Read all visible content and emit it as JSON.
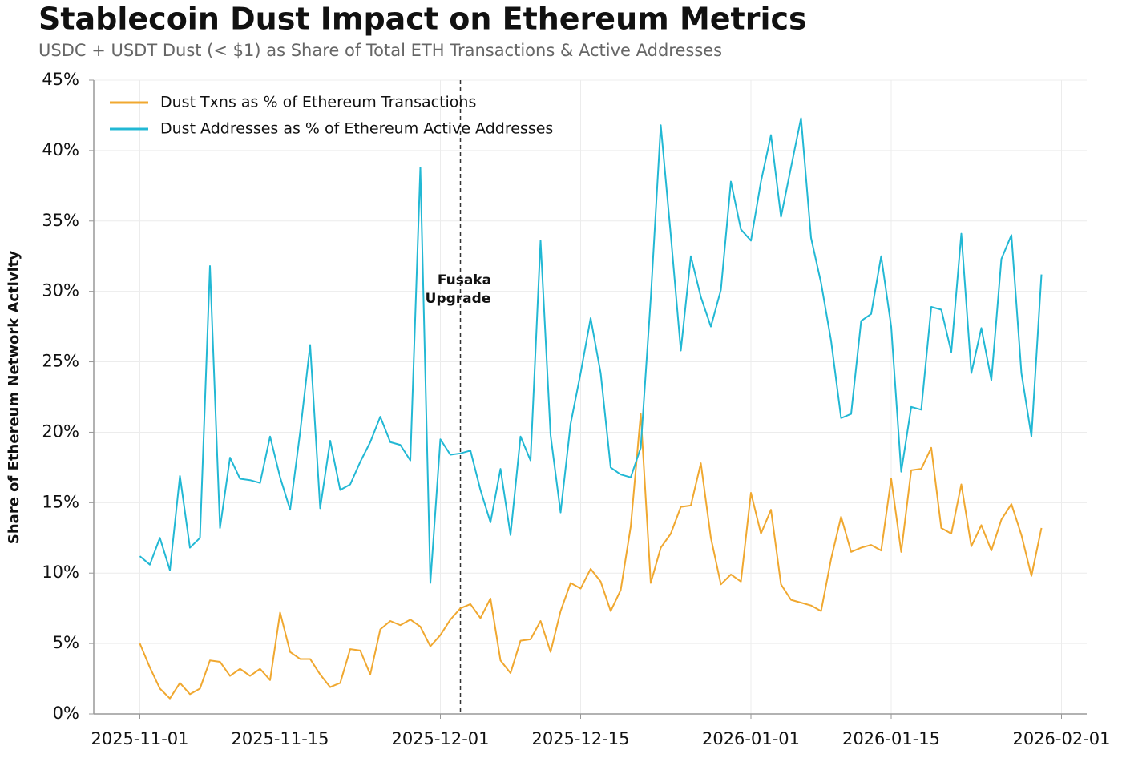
{
  "chart_data": {
    "type": "line",
    "title": "Stablecoin Dust Impact on Ethereum Metrics",
    "subtitle": "USDC + USDT Dust (< $1) as Share of Total ETH Transactions & Active Addresses",
    "y_label": "Share of Ethereum Network Activity",
    "x": [
      "2025-11-01",
      "2025-11-02",
      "2025-11-03",
      "2025-11-04",
      "2025-11-05",
      "2025-11-06",
      "2025-11-07",
      "2025-11-08",
      "2025-11-09",
      "2025-11-10",
      "2025-11-11",
      "2025-11-12",
      "2025-11-13",
      "2025-11-14",
      "2025-11-15",
      "2025-11-16",
      "2025-11-17",
      "2025-11-18",
      "2025-11-19",
      "2025-11-20",
      "2025-11-21",
      "2025-11-22",
      "2025-11-23",
      "2025-11-24",
      "2025-11-25",
      "2025-11-26",
      "2025-11-27",
      "2025-11-28",
      "2025-11-29",
      "2025-11-30",
      "2025-12-01",
      "2025-12-02",
      "2025-12-03",
      "2025-12-04",
      "2025-12-05",
      "2025-12-06",
      "2025-12-07",
      "2025-12-08",
      "2025-12-09",
      "2025-12-10",
      "2025-12-11",
      "2025-12-12",
      "2025-12-13",
      "2025-12-14",
      "2025-12-15",
      "2025-12-16",
      "2025-12-17",
      "2025-12-18",
      "2025-12-19",
      "2025-12-20",
      "2025-12-21",
      "2025-12-22",
      "2025-12-23",
      "2025-12-24",
      "2025-12-25",
      "2025-12-26",
      "2025-12-27",
      "2025-12-28",
      "2025-12-29",
      "2025-12-30",
      "2025-12-31",
      "2026-01-01",
      "2026-01-02",
      "2026-01-03",
      "2026-01-04",
      "2026-01-05",
      "2026-01-06",
      "2026-01-07",
      "2026-01-08",
      "2026-01-09",
      "2026-01-10",
      "2026-01-11",
      "2026-01-12",
      "2026-01-13",
      "2026-01-14",
      "2026-01-15",
      "2026-01-16",
      "2026-01-17",
      "2026-01-18",
      "2026-01-19",
      "2026-01-20",
      "2026-01-21",
      "2026-01-22",
      "2026-01-23",
      "2026-01-24",
      "2026-01-25",
      "2026-01-26",
      "2026-01-27",
      "2026-01-28",
      "2026-01-29",
      "2026-01-30"
    ],
    "series": [
      {
        "name": "Dust Txns as % of Ethereum Transactions",
        "color": "#f0a830",
        "values": [
          5.0,
          3.3,
          1.8,
          1.1,
          2.2,
          1.4,
          1.8,
          3.8,
          3.7,
          2.7,
          3.2,
          2.7,
          3.2,
          2.4,
          7.2,
          4.4,
          3.9,
          3.9,
          2.8,
          1.9,
          2.2,
          4.6,
          4.5,
          2.8,
          6.0,
          6.6,
          6.3,
          6.7,
          6.2,
          4.8,
          5.6,
          6.7,
          7.5,
          7.8,
          6.8,
          8.2,
          3.8,
          2.9,
          5.2,
          5.3,
          6.6,
          4.4,
          7.3,
          9.3,
          8.9,
          10.3,
          9.4,
          7.3,
          8.8,
          13.3,
          21.3,
          9.3,
          11.8,
          12.8,
          14.7,
          14.8,
          17.8,
          12.5,
          9.2,
          9.9,
          9.4,
          15.7,
          12.8,
          14.5,
          9.2,
          8.1,
          7.9,
          7.7,
          7.3,
          11.0,
          14.0,
          11.5,
          11.8,
          12.0,
          11.6,
          16.7,
          11.5,
          17.3,
          17.4,
          18.9,
          13.2,
          12.8,
          16.3,
          11.9,
          13.4,
          11.6,
          13.8,
          14.9,
          12.7,
          9.8,
          13.2
        ]
      },
      {
        "name": "Dust Addresses as % of Ethereum Active Addresses",
        "color": "#22b8d4",
        "values": [
          11.2,
          10.6,
          12.5,
          10.2,
          16.9,
          11.8,
          12.5,
          31.8,
          13.2,
          18.2,
          16.7,
          16.6,
          16.4,
          19.7,
          16.8,
          14.5,
          20.0,
          26.2,
          14.6,
          19.4,
          15.9,
          16.3,
          17.9,
          19.3,
          21.1,
          19.3,
          19.1,
          18.0,
          38.8,
          9.3,
          19.5,
          18.4,
          18.5,
          18.7,
          15.9,
          13.6,
          17.4,
          12.7,
          19.7,
          18.0,
          33.6,
          19.8,
          14.3,
          20.6,
          24.2,
          28.1,
          24.2,
          17.5,
          17.0,
          16.8,
          18.9,
          29.5,
          41.8,
          34.0,
          25.8,
          32.5,
          29.6,
          27.5,
          30.1,
          37.8,
          34.4,
          33.6,
          37.8,
          41.1,
          35.3,
          38.8,
          42.3,
          33.8,
          30.6,
          26.5,
          21.0,
          21.3,
          27.9,
          28.4,
          32.5,
          27.5,
          17.2,
          21.8,
          21.6,
          28.9,
          28.7,
          25.7,
          34.1,
          24.2,
          27.4,
          23.7,
          32.3,
          34.0,
          24.2,
          19.7,
          31.2
        ]
      }
    ],
    "xlim": [
      "2025-10-27",
      "2026-02-04"
    ],
    "xticks": [
      "2025-11-01",
      "2025-11-15",
      "2025-12-01",
      "2025-12-15",
      "2026-01-01",
      "2026-01-15",
      "2026-02-01"
    ],
    "ylim": [
      0,
      45
    ],
    "yticks": [
      {
        "value": 0,
        "label": "0%"
      },
      {
        "value": 5,
        "label": "5%"
      },
      {
        "value": 10,
        "label": "10%"
      },
      {
        "value": 15,
        "label": "15%"
      },
      {
        "value": 20,
        "label": "20%"
      },
      {
        "value": 25,
        "label": "25%"
      },
      {
        "value": 30,
        "label": "30%"
      },
      {
        "value": 35,
        "label": "35%"
      },
      {
        "value": 40,
        "label": "40%"
      },
      {
        "value": 45,
        "label": "45%"
      }
    ],
    "grid": true,
    "legend": "upper left",
    "annotation": {
      "x": "2025-12-03",
      "text": [
        "Fusaka",
        "Upgrade"
      ]
    }
  }
}
